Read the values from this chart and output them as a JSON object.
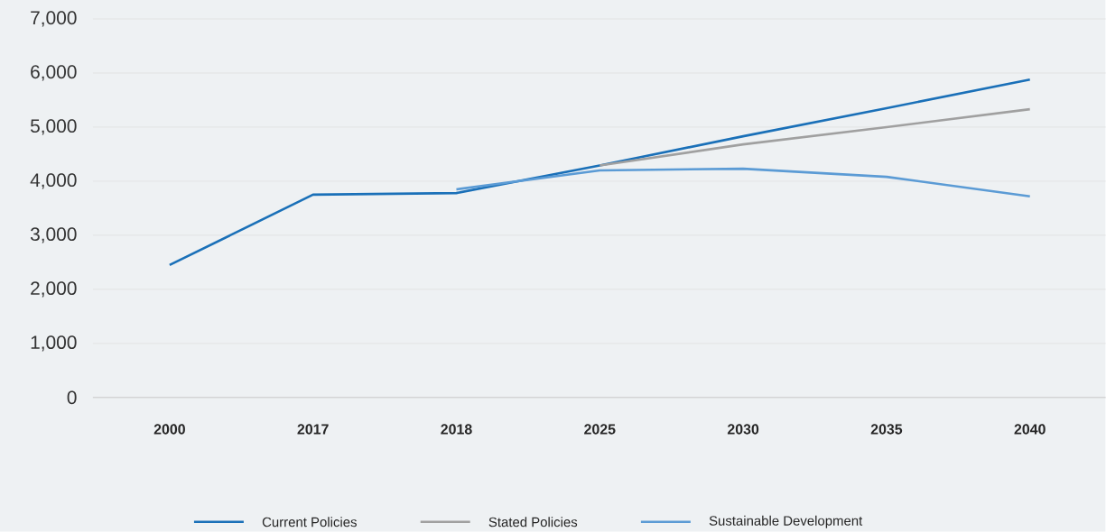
{
  "chart_data": {
    "type": "line",
    "categories": [
      "2000",
      "2017",
      "2018",
      "2025",
      "2030",
      "2035",
      "2040"
    ],
    "series": [
      {
        "name": "Current Policies",
        "color": "#1a70b8",
        "values": [
          2450,
          3750,
          3780,
          4290,
          4830,
          5350,
          5880
        ]
      },
      {
        "name": "Stated Policies",
        "color": "#a0a0a0",
        "values": [
          null,
          null,
          null,
          4290,
          4680,
          5000,
          5330
        ]
      },
      {
        "name": "Sustainable Development",
        "color": "#5b9bd5",
        "values": [
          null,
          null,
          3850,
          4200,
          4230,
          4080,
          3720
        ]
      }
    ],
    "ylim": [
      0,
      7000
    ],
    "yticks": [
      {
        "value": 0,
        "label": "0"
      },
      {
        "value": 1000,
        "label": "1,000"
      },
      {
        "value": 2000,
        "label": "2,000"
      },
      {
        "value": 3000,
        "label": "3,000"
      },
      {
        "value": 4000,
        "label": "4,000"
      },
      {
        "value": 5000,
        "label": "5,000"
      },
      {
        "value": 6000,
        "label": "6,000"
      },
      {
        "value": 7000,
        "label": "7,000"
      }
    ],
    "grid": "y",
    "legend": "bottom",
    "marker": "none",
    "line_style": "solid"
  }
}
